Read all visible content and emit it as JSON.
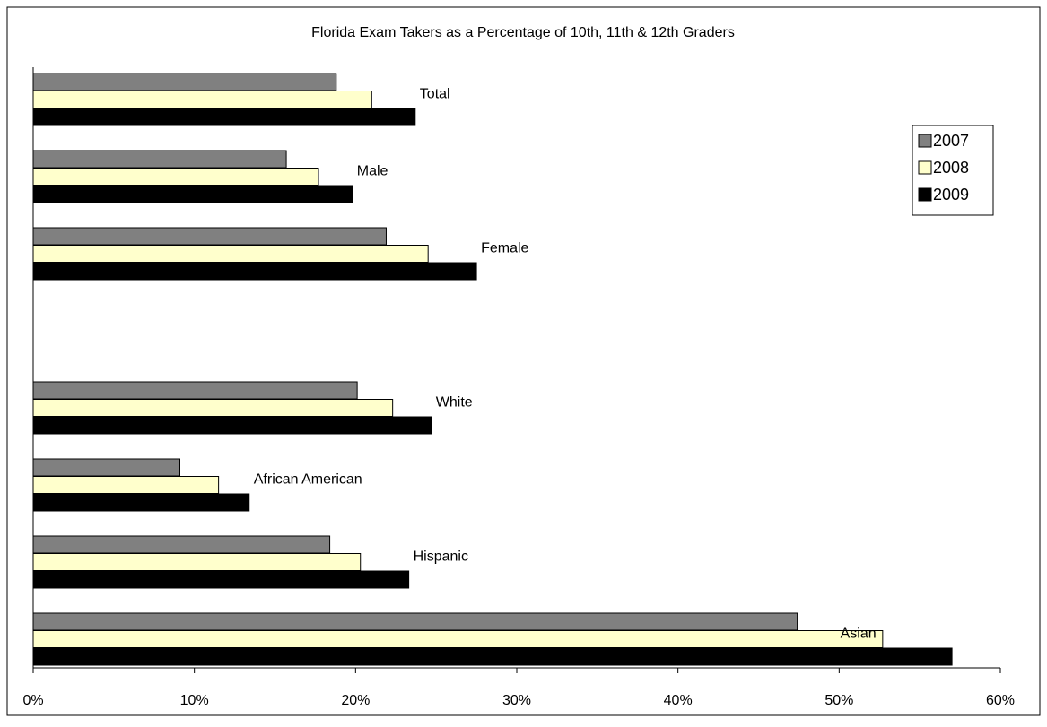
{
  "chart_data": {
    "type": "barh",
    "title": "Florida Exam Takers as a Percentage of 10th, 11th & 12th Graders",
    "categories": [
      "Total",
      "Male",
      "Female",
      null,
      "White",
      "African American",
      "Hispanic",
      "Asian"
    ],
    "series": [
      {
        "name": "2007",
        "color": "#808080",
        "values": [
          18.8,
          15.7,
          21.9,
          null,
          20.1,
          9.1,
          18.4,
          47.4
        ]
      },
      {
        "name": "2008",
        "color": "#ffffcc",
        "values": [
          21.0,
          17.7,
          24.5,
          null,
          22.3,
          11.5,
          20.3,
          52.7
        ]
      },
      {
        "name": "2009",
        "color": "#000000",
        "values": [
          23.7,
          19.8,
          27.5,
          null,
          24.7,
          13.4,
          23.3,
          57.0
        ]
      }
    ],
    "xlim": [
      0,
      60
    ],
    "xticks": [
      {
        "value": 0,
        "label": "0%"
      },
      {
        "value": 10,
        "label": "10%"
      },
      {
        "value": 20,
        "label": "20%"
      },
      {
        "value": 30,
        "label": "30%"
      },
      {
        "value": 40,
        "label": "40%"
      },
      {
        "value": 50,
        "label": "50%"
      },
      {
        "value": 60,
        "label": "60%"
      }
    ],
    "legend": "upper right"
  }
}
